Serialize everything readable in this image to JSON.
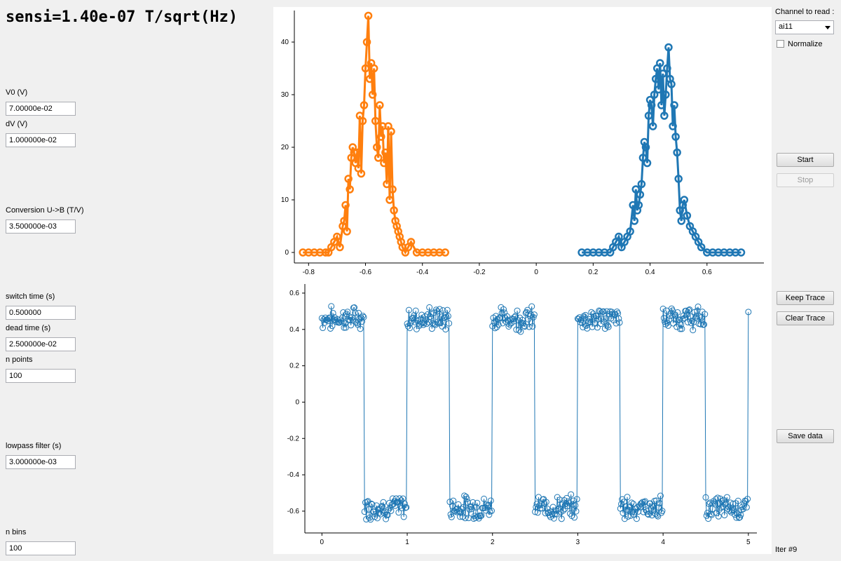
{
  "title": "sensi=1.40e-07 T/sqrt(Hz)",
  "fields": {
    "v0": {
      "label": "V0 (V)",
      "value": "7.00000e-02"
    },
    "dv": {
      "label": "dV (V)",
      "value": "1.000000e-02"
    },
    "conversion": {
      "label": "Conversion U->B (T/V)",
      "value": "3.500000e-03"
    },
    "switch_time": {
      "label": "switch time (s)",
      "value": "0.500000"
    },
    "dead_time": {
      "label": "dead time (s)",
      "value": "2.500000e-02"
    },
    "n_points": {
      "label": "n points",
      "value": "100"
    },
    "lowpass": {
      "label": "lowpass filter (s)",
      "value": "3.000000e-03"
    },
    "n_bins": {
      "label": "n bins",
      "value": "100"
    }
  },
  "controls": {
    "channel_label": "Channel to read :",
    "channel_value": "ai11",
    "normalize_label": "Normalize",
    "normalize_checked": false,
    "start": "Start",
    "stop": "Stop",
    "keep_trace": "Keep Trace",
    "clear_trace": "Clear Trace",
    "save_data": "Save data",
    "iter": "Iter #9"
  },
  "colors": {
    "orange": "#ff7f0e",
    "blue": "#1f77b4"
  },
  "chart_data": [
    {
      "type": "line",
      "xlim": [
        -0.85,
        0.8
      ],
      "ylim": [
        -2,
        46
      ],
      "x_ticks": [
        -0.8,
        -0.6,
        -0.4,
        -0.2,
        0,
        0.2,
        0.4,
        0.6
      ],
      "x_tick_labels": [
        "-0.8",
        "-0.6",
        "-0.4",
        "-0.2",
        "0",
        "0.2",
        "0.4",
        "0.6"
      ],
      "y_ticks": [
        0,
        10,
        20,
        30,
        40
      ],
      "y_tick_labels": [
        "0",
        "10",
        "20",
        "30",
        "40"
      ],
      "series": [
        {
          "color": "#ff7f0e",
          "x": [
            -0.82,
            -0.8,
            -0.78,
            -0.76,
            -0.74,
            -0.73,
            -0.72,
            -0.71,
            -0.7,
            -0.69,
            -0.68,
            -0.675,
            -0.67,
            -0.665,
            -0.66,
            -0.655,
            -0.65,
            -0.645,
            -0.64,
            -0.635,
            -0.63,
            -0.625,
            -0.62,
            -0.615,
            -0.61,
            -0.605,
            -0.6,
            -0.595,
            -0.59,
            -0.585,
            -0.58,
            -0.575,
            -0.57,
            -0.565,
            -0.56,
            -0.555,
            -0.55,
            -0.545,
            -0.54,
            -0.535,
            -0.53,
            -0.525,
            -0.52,
            -0.515,
            -0.51,
            -0.505,
            -0.5,
            -0.495,
            -0.49,
            -0.485,
            -0.48,
            -0.475,
            -0.47,
            -0.46,
            -0.45,
            -0.44,
            -0.42,
            -0.4,
            -0.38,
            -0.36,
            -0.34,
            -0.32
          ],
          "y": [
            0,
            0,
            0,
            0,
            0,
            0,
            1,
            2,
            3,
            1,
            5,
            6,
            9,
            4,
            14,
            12,
            18,
            20,
            19,
            17,
            19,
            16,
            26,
            15,
            25,
            28,
            35,
            40,
            45,
            33,
            36,
            30,
            35,
            25,
            20,
            18,
            28,
            22,
            24,
            17,
            19,
            13,
            24,
            10,
            23,
            12,
            8,
            6,
            5,
            4,
            3,
            2,
            1,
            0,
            1,
            2,
            0,
            0,
            0,
            0,
            0,
            0
          ]
        },
        {
          "color": "#1f77b4",
          "x": [
            0.16,
            0.18,
            0.2,
            0.22,
            0.24,
            0.26,
            0.27,
            0.28,
            0.29,
            0.3,
            0.31,
            0.32,
            0.33,
            0.34,
            0.345,
            0.35,
            0.355,
            0.36,
            0.365,
            0.37,
            0.375,
            0.38,
            0.385,
            0.39,
            0.395,
            0.4,
            0.405,
            0.41,
            0.415,
            0.42,
            0.425,
            0.43,
            0.435,
            0.44,
            0.445,
            0.45,
            0.455,
            0.46,
            0.465,
            0.47,
            0.475,
            0.48,
            0.485,
            0.49,
            0.495,
            0.5,
            0.505,
            0.51,
            0.515,
            0.52,
            0.53,
            0.54,
            0.55,
            0.56,
            0.57,
            0.58,
            0.6,
            0.62,
            0.64,
            0.66,
            0.68,
            0.7,
            0.72
          ],
          "y": [
            0,
            0,
            0,
            0,
            0,
            0,
            1,
            2,
            3,
            1,
            2,
            3,
            4,
            9,
            6,
            12,
            8,
            9,
            11,
            13,
            18,
            21,
            20,
            17,
            26,
            29,
            28,
            24,
            30,
            33,
            35,
            31,
            36,
            28,
            34,
            26,
            30,
            35,
            39,
            33,
            32,
            24,
            28,
            22,
            19,
            14,
            8,
            6,
            9,
            10,
            7,
            5,
            4,
            3,
            2,
            1,
            0,
            0,
            0,
            0,
            0,
            0,
            0
          ]
        }
      ]
    },
    {
      "type": "line",
      "xlim": [
        -0.2,
        5.1
      ],
      "ylim": [
        -0.72,
        0.65
      ],
      "x_ticks": [
        0,
        1,
        2,
        3,
        4,
        5
      ],
      "x_tick_labels": [
        "0",
        "1",
        "2",
        "3",
        "4",
        "5"
      ],
      "y_ticks": [
        0.6,
        0.4,
        0.2,
        0,
        -0.2,
        -0.4,
        -0.6
      ],
      "y_tick_labels": [
        "0.6",
        "0.4",
        "0.2",
        "0",
        "-0.2",
        "-0.4",
        "-0.6"
      ],
      "square_wave": {
        "period": 1.0,
        "switch_time": 0.5,
        "high": 0.46,
        "low": -0.58,
        "x_start": 0.0,
        "x_end": 5.0,
        "noise": 0.05
      },
      "series": [
        {
          "color": "#1f77b4"
        }
      ]
    }
  ]
}
